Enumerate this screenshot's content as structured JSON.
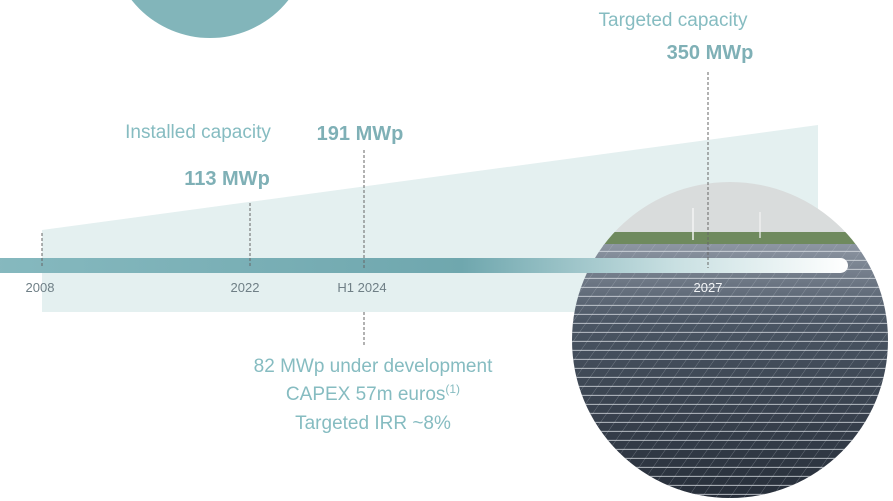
{
  "header": {
    "target_label": "Targeted capacity",
    "target_value": "350 MWp",
    "installed_label": "Installed capacity"
  },
  "timeline": [
    {
      "label": "2008"
    },
    {
      "label": "2022",
      "value": "113 MWp"
    },
    {
      "label": "H1 2024",
      "value": "191 MWp"
    },
    {
      "label": "2027"
    }
  ],
  "development": {
    "line1": "82 MWp under development",
    "line2": "CAPEX 57m euros",
    "line2_note": "(1)",
    "line3": "Targeted IRR ~8%"
  }
}
